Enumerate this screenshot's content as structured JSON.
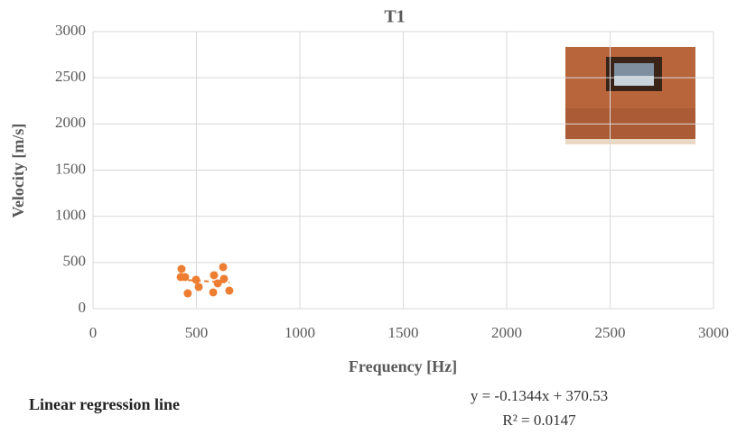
{
  "chart_data": {
    "type": "scatter",
    "title": "T1",
    "xlabel": "Frequency [Hz]",
    "ylabel": "Velocity [m/s]",
    "x": [
      428,
      424,
      445,
      458,
      498,
      511,
      581,
      585,
      603,
      629,
      633,
      659
    ],
    "values": [
      430,
      342,
      342,
      166,
      313,
      235,
      176,
      362,
      274,
      450,
      323,
      195
    ],
    "color": "#ed7d31",
    "xlim": [
      0,
      3000
    ],
    "xticks": [
      0,
      500,
      1000,
      1500,
      2000,
      2500,
      3000
    ],
    "ylim": [
      0,
      3000
    ],
    "yticks": [
      0,
      500,
      1000,
      1500,
      2000,
      2500,
      3000
    ],
    "grid": true,
    "trendline": {
      "slope": -0.1344,
      "intercept": 370.53,
      "x": [
        420,
        660
      ],
      "equation": "y = -0.1344x + 370.53",
      "r2": "R² = 0.0147"
    },
    "note": "Linear regression line"
  }
}
